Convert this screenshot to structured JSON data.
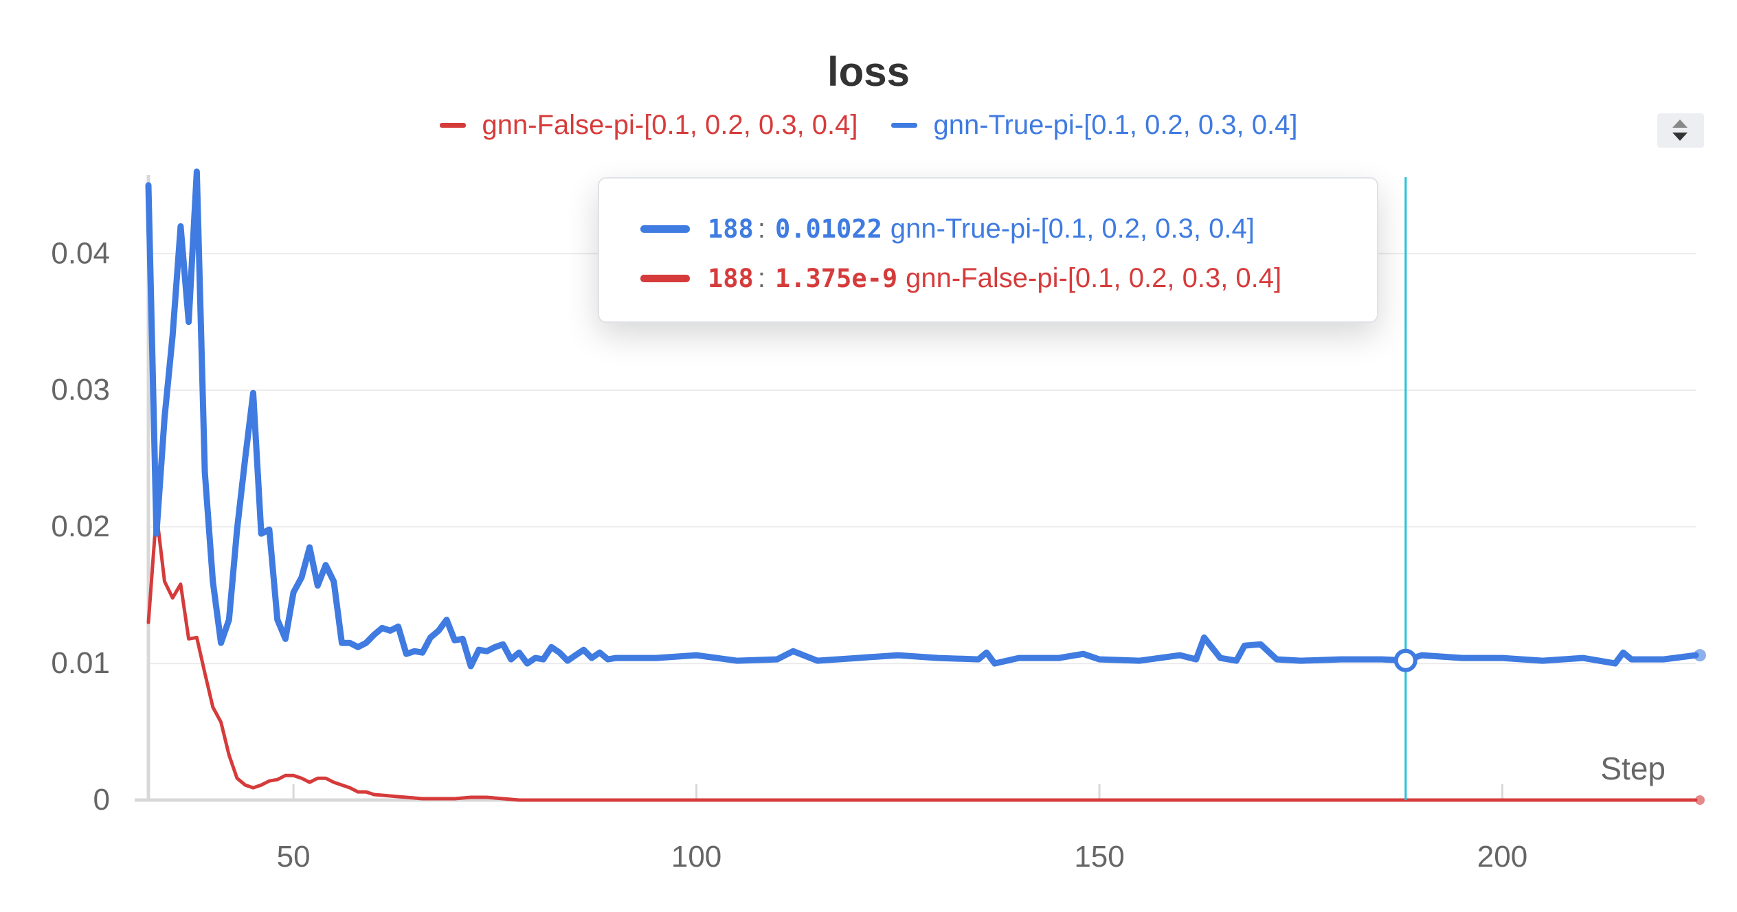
{
  "title": "loss",
  "colors": {
    "red": "#d63b3b",
    "blue": "#3f7be0",
    "cursor": "#1fc3dc",
    "axis": "#d8d8d8",
    "grid": "#ebebeb",
    "text": "#666666"
  },
  "legend": [
    {
      "label": "gnn-False-pi-[0.1, 0.2, 0.3, 0.4]",
      "color": "#d63b3b"
    },
    {
      "label": "gnn-True-pi-[0.1, 0.2, 0.3, 0.4]",
      "color": "#3f7be0"
    }
  ],
  "tooltip": {
    "rows": [
      {
        "step": "188",
        "value": "0.01022",
        "name": "gnn-True-pi-[0.1, 0.2, 0.3, 0.4]",
        "color": "#3f7be0"
      },
      {
        "step": "188",
        "value": "1.375e-9",
        "name": "gnn-False-pi-[0.1, 0.2, 0.3, 0.4]",
        "color": "#d63b3b"
      }
    ]
  },
  "chart_data": {
    "type": "line",
    "title": "loss",
    "xlabel": "Step",
    "ylabel": "",
    "xlim": [
      32,
      224
    ],
    "ylim": [
      0,
      0.0465
    ],
    "xticks": [
      50,
      100,
      150,
      200
    ],
    "yticks": [
      0,
      0.01,
      0.02,
      0.03,
      0.04
    ],
    "ytick_labels": [
      "0",
      "0.01",
      "0.02",
      "0.03",
      "0.04"
    ],
    "grid": true,
    "legend_position": "top-center",
    "cursor_step": 188,
    "series": [
      {
        "name": "gnn-False-pi-[0.1, 0.2, 0.3, 0.4]",
        "color": "#d63b3b",
        "x": [
          32,
          33,
          34,
          35,
          36,
          37,
          38,
          39,
          40,
          41,
          42,
          43,
          44,
          45,
          46,
          47,
          48,
          49,
          50,
          51,
          52,
          53,
          54,
          55,
          56,
          57,
          58,
          59,
          60,
          62,
          64,
          66,
          68,
          70,
          72,
          74,
          76,
          78,
          80,
          85,
          90,
          100,
          120,
          150,
          180,
          188,
          200,
          224
        ],
        "y": [
          0.013,
          0.021,
          0.016,
          0.0148,
          0.0158,
          0.0118,
          0.0119,
          0.0093,
          0.0068,
          0.0057,
          0.0033,
          0.0016,
          0.0011,
          0.0009,
          0.0011,
          0.0014,
          0.0015,
          0.0018,
          0.0018,
          0.0016,
          0.0013,
          0.0016,
          0.0016,
          0.0013,
          0.0011,
          0.0009,
          0.0006,
          0.0006,
          0.0004,
          0.0003,
          0.0002,
          0.0001,
          0.0001,
          0.0001,
          0.0002,
          0.0002,
          0.0001,
          0.0,
          0.0,
          0.0,
          0.0,
          0.0,
          0.0,
          0.0,
          0.0,
          0.0,
          0.0,
          0.0
        ]
      },
      {
        "name": "gnn-True-pi-[0.1, 0.2, 0.3, 0.4]",
        "color": "#3f7be0",
        "x": [
          32,
          33,
          34,
          35,
          36,
          37,
          38,
          39,
          40,
          41,
          42,
          43,
          44,
          45,
          46,
          47,
          48,
          49,
          50,
          51,
          52,
          53,
          54,
          55,
          56,
          57,
          58,
          59,
          60,
          61,
          62,
          63,
          64,
          65,
          66,
          67,
          68,
          69,
          70,
          71,
          72,
          73,
          74,
          75,
          76,
          77,
          78,
          79,
          80,
          81,
          82,
          83,
          84,
          85,
          86,
          87,
          88,
          89,
          90,
          95,
          100,
          105,
          110,
          112,
          115,
          120,
          125,
          130,
          135,
          136,
          137,
          140,
          145,
          148,
          150,
          155,
          160,
          162,
          163,
          165,
          167,
          168,
          170,
          172,
          175,
          180,
          185,
          188,
          190,
          195,
          200,
          205,
          210,
          214,
          215,
          216,
          220,
          224
        ],
        "y": [
          0.045,
          0.0195,
          0.028,
          0.034,
          0.042,
          0.035,
          0.046,
          0.024,
          0.016,
          0.0115,
          0.0132,
          0.0198,
          0.025,
          0.0298,
          0.0195,
          0.0198,
          0.0132,
          0.0118,
          0.0152,
          0.0163,
          0.0185,
          0.0157,
          0.0172,
          0.016,
          0.0115,
          0.0115,
          0.0112,
          0.0115,
          0.0121,
          0.0126,
          0.0124,
          0.0127,
          0.0107,
          0.0109,
          0.0108,
          0.0119,
          0.0124,
          0.0132,
          0.0117,
          0.0118,
          0.0098,
          0.011,
          0.0109,
          0.0112,
          0.0114,
          0.0103,
          0.0108,
          0.01,
          0.0104,
          0.0103,
          0.0112,
          0.0108,
          0.0102,
          0.0106,
          0.011,
          0.0104,
          0.0108,
          0.0103,
          0.0104,
          0.0104,
          0.0106,
          0.0102,
          0.0103,
          0.0109,
          0.0102,
          0.0104,
          0.0106,
          0.0104,
          0.0103,
          0.0108,
          0.01,
          0.0104,
          0.0104,
          0.0107,
          0.0103,
          0.0102,
          0.0106,
          0.0103,
          0.0119,
          0.0104,
          0.0102,
          0.0113,
          0.0114,
          0.0103,
          0.0102,
          0.0103,
          0.0103,
          0.01022,
          0.0106,
          0.0104,
          0.0104,
          0.0102,
          0.0104,
          0.01,
          0.0108,
          0.0103,
          0.0103,
          0.0106
        ]
      }
    ]
  }
}
